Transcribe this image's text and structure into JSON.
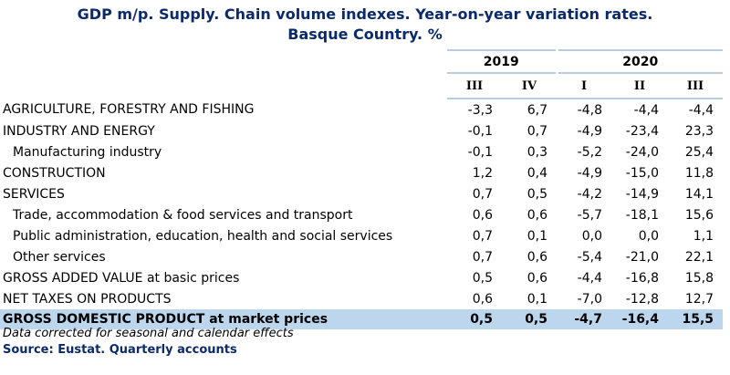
{
  "title_line1": "GDP m/p. Supply. Chain volume indexes. Year-on-year variation rates.",
  "title_line2": "Basque Country. %",
  "years": [
    "2019",
    "2020"
  ],
  "quarters": [
    "III",
    "IV",
    "I",
    "II",
    "III"
  ],
  "rows": [
    {
      "label": "AGRICULTURE, FORESTRY AND FISHING",
      "values": [
        "-3,3",
        "6,7",
        "-4,8",
        "-4,4",
        "-4,4"
      ]
    },
    {
      "label": "INDUSTRY AND ENERGY",
      "values": [
        "-0,1",
        "0,7",
        "-4,9",
        "-23,4",
        "23,3"
      ]
    },
    {
      "label": "Manufacturing industry",
      "values": [
        "-0,1",
        "0,3",
        "-5,2",
        "-24,0",
        "25,4"
      ]
    },
    {
      "label": "CONSTRUCTION",
      "values": [
        "1,2",
        "0,4",
        "-4,9",
        "-15,0",
        "11,8"
      ]
    },
    {
      "label": "SERVICES",
      "values": [
        "0,7",
        "0,5",
        "-4,2",
        "-14,9",
        "14,1"
      ]
    },
    {
      "label": "Trade, accommodation & food services and transport",
      "values": [
        "0,6",
        "0,6",
        "-5,7",
        "-18,1",
        "15,6"
      ]
    },
    {
      "label": "Public administration, education, health and social services",
      "values": [
        "0,7",
        "0,1",
        "0,0",
        "0,0",
        "1,1"
      ]
    },
    {
      "label": "Other services",
      "values": [
        "0,7",
        "0,6",
        "-5,4",
        "-21,0",
        "22,1"
      ]
    },
    {
      "label": "GROSS ADDED VALUE at basic prices",
      "values": [
        "0,5",
        "0,6",
        "-4,4",
        "-16,8",
        "15,8"
      ]
    },
    {
      "label": "NET TAXES ON PRODUCTS",
      "values": [
        "0,6",
        "0,1",
        "-7,0",
        "-12,8",
        "12,7"
      ]
    },
    {
      "label": "GROSS DOMESTIC PRODUCT at market prices",
      "values": [
        "0,5",
        "0,5",
        "-4,7",
        "-16,4",
        "15,5"
      ]
    }
  ],
  "note": "Data corrected for seasonal and calendar effects",
  "source": "Source: Eustat. Quarterly accounts",
  "colors": {
    "title": "#0b2a6b",
    "highlight_row": "#bcd6ee",
    "rule": "#b8cce4"
  }
}
